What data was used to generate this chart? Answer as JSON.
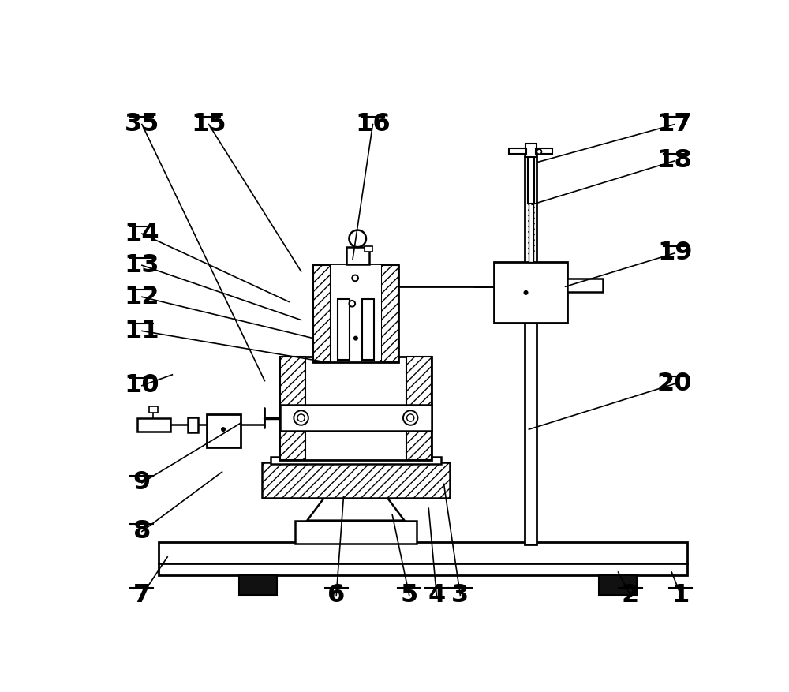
{
  "background": "#ffffff",
  "lc": "#000000",
  "fig_width": 10.0,
  "fig_height": 8.77,
  "labels": [
    [
      35,
      68,
      68,
      270,
      490
    ],
    [
      15,
      178,
      68,
      330,
      310
    ],
    [
      16,
      448,
      68,
      415,
      290
    ],
    [
      17,
      945,
      68,
      720,
      130
    ],
    [
      18,
      945,
      128,
      710,
      200
    ],
    [
      19,
      945,
      280,
      765,
      335
    ],
    [
      20,
      945,
      495,
      705,
      570
    ],
    [
      14,
      68,
      248,
      310,
      360
    ],
    [
      13,
      68,
      300,
      330,
      390
    ],
    [
      12,
      68,
      352,
      350,
      420
    ],
    [
      11,
      68,
      408,
      375,
      460
    ],
    [
      10,
      68,
      498,
      118,
      480
    ],
    [
      9,
      68,
      658,
      230,
      560
    ],
    [
      8,
      68,
      738,
      200,
      640
    ],
    [
      7,
      68,
      843,
      110,
      780
    ],
    [
      6,
      388,
      843,
      400,
      680
    ],
    [
      5,
      508,
      843,
      480,
      710
    ],
    [
      4,
      553,
      843,
      540,
      700
    ],
    [
      3,
      592,
      843,
      565,
      660
    ],
    [
      2,
      872,
      843,
      852,
      805
    ],
    [
      1,
      955,
      843,
      940,
      805
    ]
  ]
}
